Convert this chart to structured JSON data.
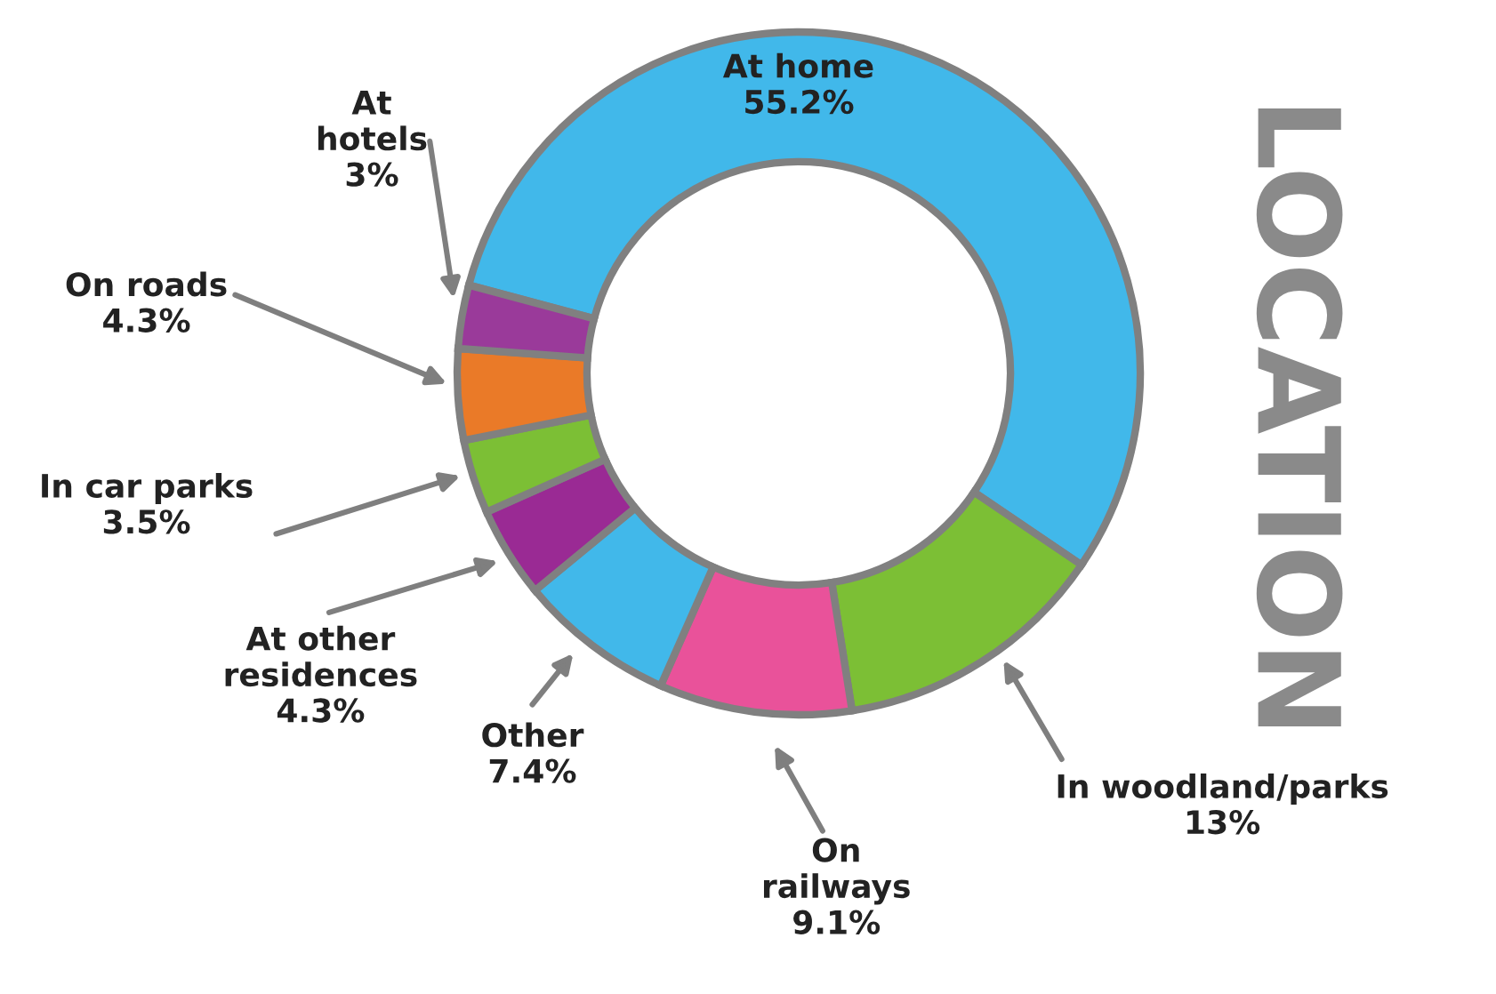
{
  "chart_data": {
    "type": "donut",
    "title": "LOCATION",
    "categories": [
      "At home",
      "In woodland/parks",
      "On railways",
      "Other",
      "At other residences",
      "In car parks",
      "On roads",
      "At hotels"
    ],
    "values": [
      55.2,
      13,
      9.1,
      7.4,
      4.3,
      3.5,
      4.3,
      3
    ],
    "value_labels": [
      "55.2%",
      "13%",
      "9.1%",
      "7.4%",
      "4.3%",
      "3.5%",
      "4.3%",
      "3%"
    ],
    "colors": [
      "#41b8ea",
      "#7cbf35",
      "#e9529a",
      "#41b8ea",
      "#9a2a94",
      "#7cbf35",
      "#ea7a28",
      "#9a3a9a"
    ],
    "legend": false
  }
}
